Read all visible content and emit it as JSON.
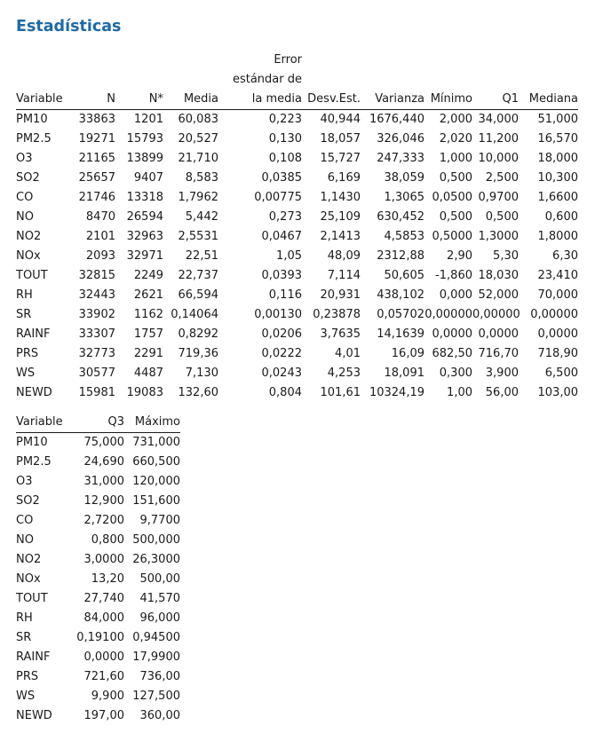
{
  "title": "Estadísticas",
  "table1": {
    "headers": {
      "variable": "Variable",
      "n": "N",
      "nstar": "N*",
      "media": "Media",
      "error_line1": "Error",
      "error_line2": "estándar de",
      "error_line3": "la media",
      "desvest": "Desv.Est.",
      "varianza": "Varianza",
      "minimo": "Mínimo",
      "q1": "Q1",
      "mediana": "Mediana"
    },
    "rows": [
      {
        "variable": "PM10",
        "n": "33863",
        "nstar": "1201",
        "media": "60,083",
        "se": "0,223",
        "sd": "40,944",
        "var": "1676,440",
        "min": "2,000",
        "q1": "34,000",
        "med": "51,000"
      },
      {
        "variable": "PM2.5",
        "n": "19271",
        "nstar": "15793",
        "media": "20,527",
        "se": "0,130",
        "sd": "18,057",
        "var": "326,046",
        "min": "2,020",
        "q1": "11,200",
        "med": "16,570"
      },
      {
        "variable": "O3",
        "n": "21165",
        "nstar": "13899",
        "media": "21,710",
        "se": "0,108",
        "sd": "15,727",
        "var": "247,333",
        "min": "1,000",
        "q1": "10,000",
        "med": "18,000"
      },
      {
        "variable": "SO2",
        "n": "25657",
        "nstar": "9407",
        "media": "8,583",
        "se": "0,0385",
        "sd": "6,169",
        "var": "38,059",
        "min": "0,500",
        "q1": "2,500",
        "med": "10,300"
      },
      {
        "variable": "CO",
        "n": "21746",
        "nstar": "13318",
        "media": "1,7962",
        "se": "0,00775",
        "sd": "1,1430",
        "var": "1,3065",
        "min": "0,0500",
        "q1": "0,9700",
        "med": "1,6600"
      },
      {
        "variable": "NO",
        "n": "8470",
        "nstar": "26594",
        "media": "5,442",
        "se": "0,273",
        "sd": "25,109",
        "var": "630,452",
        "min": "0,500",
        "q1": "0,500",
        "med": "0,600"
      },
      {
        "variable": "NO2",
        "n": "2101",
        "nstar": "32963",
        "media": "2,5531",
        "se": "0,0467",
        "sd": "2,1413",
        "var": "4,5853",
        "min": "0,5000",
        "q1": "1,3000",
        "med": "1,8000"
      },
      {
        "variable": "NOx",
        "n": "2093",
        "nstar": "32971",
        "media": "22,51",
        "se": "1,05",
        "sd": "48,09",
        "var": "2312,88",
        "min": "2,90",
        "q1": "5,30",
        "med": "6,30"
      },
      {
        "variable": "TOUT",
        "n": "32815",
        "nstar": "2249",
        "media": "22,737",
        "se": "0,0393",
        "sd": "7,114",
        "var": "50,605",
        "min": "-1,860",
        "q1": "18,030",
        "med": "23,410"
      },
      {
        "variable": "RH",
        "n": "32443",
        "nstar": "2621",
        "media": "66,594",
        "se": "0,116",
        "sd": "20,931",
        "var": "438,102",
        "min": "0,000",
        "q1": "52,000",
        "med": "70,000"
      },
      {
        "variable": "SR",
        "n": "33902",
        "nstar": "1162",
        "media": "0,14064",
        "se": "0,00130",
        "sd": "0,23878",
        "var": "0,05702",
        "min": "0,00000",
        "q1": "0,00000",
        "med": "0,00000"
      },
      {
        "variable": "RAINF",
        "n": "33307",
        "nstar": "1757",
        "media": "0,8292",
        "se": "0,0206",
        "sd": "3,7635",
        "var": "14,1639",
        "min": "0,0000",
        "q1": "0,0000",
        "med": "0,0000"
      },
      {
        "variable": "PRS",
        "n": "32773",
        "nstar": "2291",
        "media": "719,36",
        "se": "0,0222",
        "sd": "4,01",
        "var": "16,09",
        "min": "682,50",
        "q1": "716,70",
        "med": "718,90"
      },
      {
        "variable": "WS",
        "n": "30577",
        "nstar": "4487",
        "media": "7,130",
        "se": "0,0243",
        "sd": "4,253",
        "var": "18,091",
        "min": "0,300",
        "q1": "3,900",
        "med": "6,500"
      },
      {
        "variable": "NEWD",
        "n": "15981",
        "nstar": "19083",
        "media": "132,60",
        "se": "0,804",
        "sd": "101,61",
        "var": "10324,19",
        "min": "1,00",
        "q1": "56,00",
        "med": "103,00"
      }
    ]
  },
  "table2": {
    "headers": {
      "variable": "Variable",
      "q3": "Q3",
      "maximo": "Máximo"
    },
    "rows": [
      {
        "variable": "PM10",
        "q3": "75,000",
        "max": "731,000"
      },
      {
        "variable": "PM2.5",
        "q3": "24,690",
        "max": "660,500"
      },
      {
        "variable": "O3",
        "q3": "31,000",
        "max": "120,000"
      },
      {
        "variable": "SO2",
        "q3": "12,900",
        "max": "151,600"
      },
      {
        "variable": "CO",
        "q3": "2,7200",
        "max": "9,7700"
      },
      {
        "variable": "NO",
        "q3": "0,800",
        "max": "500,000"
      },
      {
        "variable": "NO2",
        "q3": "3,0000",
        "max": "26,3000"
      },
      {
        "variable": "NOx",
        "q3": "13,20",
        "max": "500,00"
      },
      {
        "variable": "TOUT",
        "q3": "27,740",
        "max": "41,570"
      },
      {
        "variable": "RH",
        "q3": "84,000",
        "max": "96,000"
      },
      {
        "variable": "SR",
        "q3": "0,19100",
        "max": "0,94500"
      },
      {
        "variable": "RAINF",
        "q3": "0,0000",
        "max": "17,9900"
      },
      {
        "variable": "PRS",
        "q3": "721,60",
        "max": "736,00"
      },
      {
        "variable": "WS",
        "q3": "9,900",
        "max": "127,500"
      },
      {
        "variable": "NEWD",
        "q3": "197,00",
        "max": "360,00"
      }
    ]
  }
}
